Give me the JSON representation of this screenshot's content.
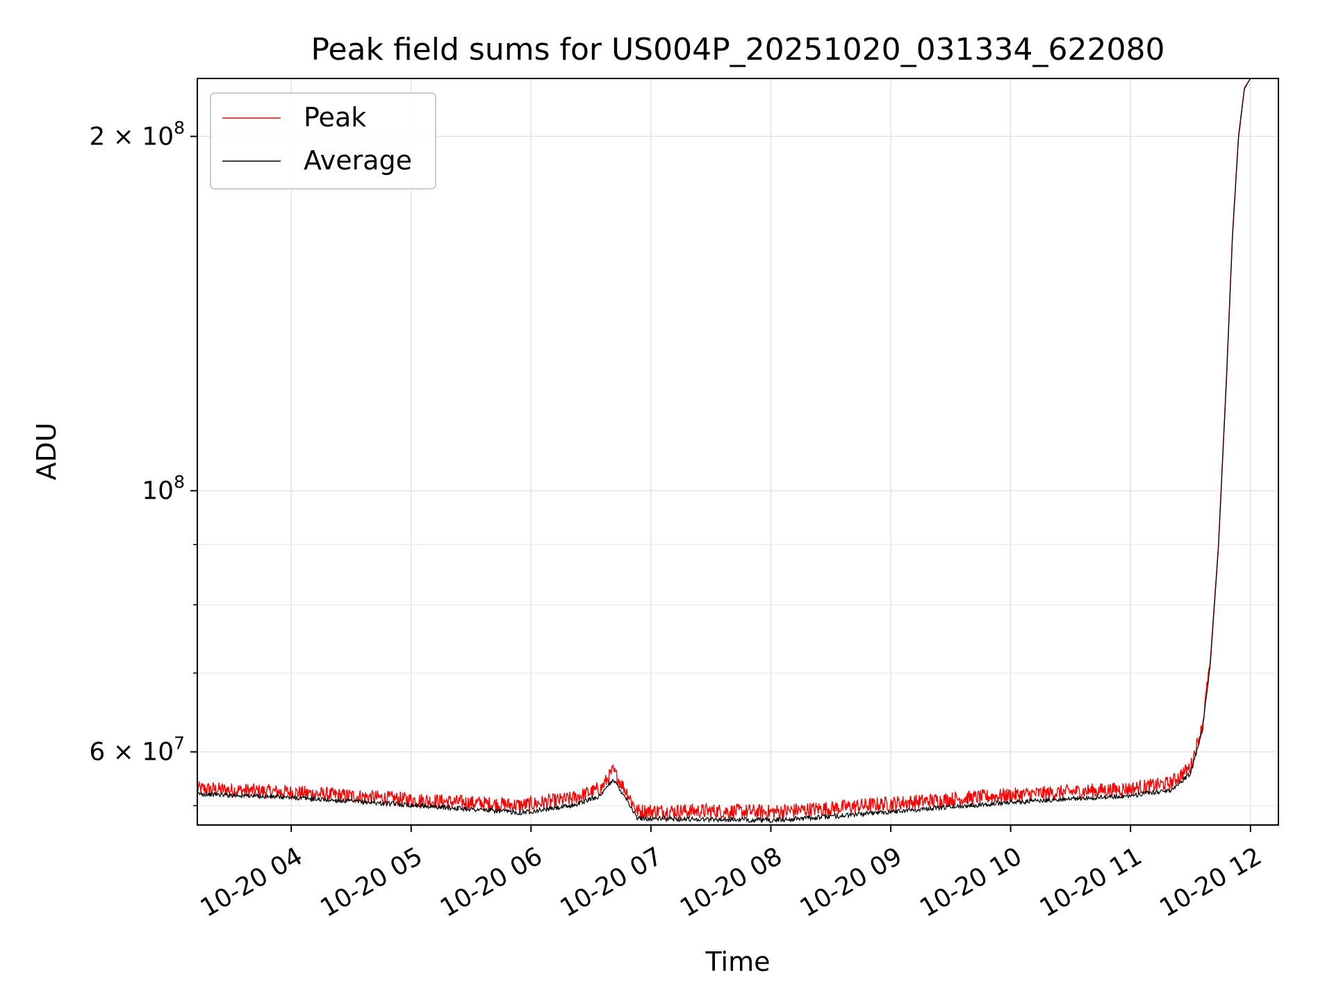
{
  "chart_data": {
    "type": "line",
    "title": "Peak field sums for US004P_20251020_031334_622080",
    "xlabel": "Time",
    "ylabel": "ADU",
    "y_scale": "log",
    "grid": true,
    "legend_position": "upper-left",
    "xlim": [
      "2025-10-20T03:13",
      "2025-10-20T12:14"
    ],
    "ylim": [
      52000000,
      224000000
    ],
    "x_ticks": [
      {
        "value": "2025-10-20T04:00",
        "label": "10-20 04"
      },
      {
        "value": "2025-10-20T05:00",
        "label": "10-20 05"
      },
      {
        "value": "2025-10-20T06:00",
        "label": "10-20 06"
      },
      {
        "value": "2025-10-20T07:00",
        "label": "10-20 07"
      },
      {
        "value": "2025-10-20T08:00",
        "label": "10-20 08"
      },
      {
        "value": "2025-10-20T09:00",
        "label": "10-20 09"
      },
      {
        "value": "2025-10-20T10:00",
        "label": "10-20 10"
      },
      {
        "value": "2025-10-20T11:00",
        "label": "10-20 11"
      },
      {
        "value": "2025-10-20T12:00",
        "label": "10-20 12"
      }
    ],
    "y_major_ticks": [
      {
        "value": 60000000,
        "base": "6",
        "exp": "7",
        "label": "6 × 10^7"
      },
      {
        "value": 100000000,
        "base": "",
        "exp": "8",
        "label": "10^8"
      },
      {
        "value": 200000000,
        "base": "2",
        "exp": "8",
        "label": "2 × 10^8"
      }
    ],
    "y_minor_ticks": [
      54000000,
      70000000,
      80000000,
      90000000
    ],
    "series": [
      {
        "name": "Peak",
        "color": "#ff0000",
        "noise_amplitude": 1600000,
        "points": [
          [
            "2025-10-20T03:13",
            55600000
          ],
          [
            "2025-10-20T04:00",
            55200000
          ],
          [
            "2025-10-20T05:00",
            54400000
          ],
          [
            "2025-10-20T05:55",
            53800000
          ],
          [
            "2025-10-20T06:20",
            54500000
          ],
          [
            "2025-10-20T06:35",
            55600000
          ],
          [
            "2025-10-20T06:41",
            57600000
          ],
          [
            "2025-10-20T06:48",
            55200000
          ],
          [
            "2025-10-20T06:53",
            53200000
          ],
          [
            "2025-10-20T07:30",
            53200000
          ],
          [
            "2025-10-20T08:00",
            53100000
          ],
          [
            "2025-10-20T08:30",
            53500000
          ],
          [
            "2025-10-20T09:00",
            54000000
          ],
          [
            "2025-10-20T10:00",
            54900000
          ],
          [
            "2025-10-20T11:00",
            55600000
          ],
          [
            "2025-10-20T11:20",
            56200000
          ],
          [
            "2025-10-20T11:30",
            58000000
          ],
          [
            "2025-10-20T11:36",
            63000000
          ],
          [
            "2025-10-20T11:40",
            72000000
          ],
          [
            "2025-10-20T11:44",
            90000000
          ],
          [
            "2025-10-20T11:48",
            125000000
          ],
          [
            "2025-10-20T11:51",
            165000000
          ],
          [
            "2025-10-20T11:54",
            200000000
          ],
          [
            "2025-10-20T11:57",
            220000000
          ],
          [
            "2025-10-20T12:00",
            224000000
          ],
          [
            "2025-10-20T12:14",
            224000000
          ]
        ]
      },
      {
        "name": "Average",
        "color": "#000000",
        "noise_amplitude": 500000,
        "points": [
          [
            "2025-10-20T03:13",
            55200000
          ],
          [
            "2025-10-20T04:00",
            54800000
          ],
          [
            "2025-10-20T05:00",
            54000000
          ],
          [
            "2025-10-20T05:55",
            53200000
          ],
          [
            "2025-10-20T06:20",
            53900000
          ],
          [
            "2025-10-20T06:35",
            55000000
          ],
          [
            "2025-10-20T06:41",
            56800000
          ],
          [
            "2025-10-20T06:48",
            54600000
          ],
          [
            "2025-10-20T06:53",
            52600000
          ],
          [
            "2025-10-20T07:30",
            52500000
          ],
          [
            "2025-10-20T08:00",
            52400000
          ],
          [
            "2025-10-20T08:30",
            52800000
          ],
          [
            "2025-10-20T09:00",
            53300000
          ],
          [
            "2025-10-20T10:00",
            54300000
          ],
          [
            "2025-10-20T11:00",
            55000000
          ],
          [
            "2025-10-20T11:20",
            55600000
          ],
          [
            "2025-10-20T11:30",
            57400000
          ],
          [
            "2025-10-20T11:36",
            62500000
          ],
          [
            "2025-10-20T11:40",
            71500000
          ],
          [
            "2025-10-20T11:44",
            89500000
          ],
          [
            "2025-10-20T11:48",
            124000000
          ],
          [
            "2025-10-20T11:51",
            164000000
          ],
          [
            "2025-10-20T11:54",
            199000000
          ],
          [
            "2025-10-20T11:57",
            219500000
          ],
          [
            "2025-10-20T12:00",
            224000000
          ],
          [
            "2025-10-20T12:14",
            224000000
          ]
        ]
      }
    ]
  }
}
